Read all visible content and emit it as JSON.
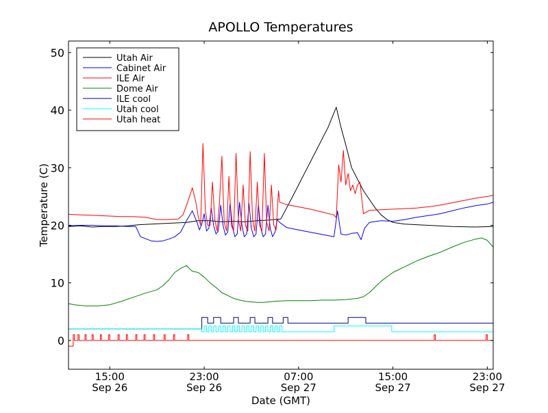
{
  "chart_data": {
    "type": "line",
    "title": "APOLLO Temperatures",
    "xlabel": "Date (GMT)",
    "ylabel": "Temperature (C)",
    "xlim": [
      11.5,
      47.5
    ],
    "ylim": [
      -5,
      52
    ],
    "x_unit": "hours since Sep 26 00:00 GMT",
    "grid": false,
    "legend_position": "top-left",
    "yticks": [
      {
        "value": 0,
        "label": "0"
      },
      {
        "value": 10,
        "label": "10"
      },
      {
        "value": 20,
        "label": "20"
      },
      {
        "value": 30,
        "label": "30"
      },
      {
        "value": 40,
        "label": "40"
      },
      {
        "value": 50,
        "label": "50"
      }
    ],
    "xticks": [
      {
        "value": 15,
        "time": "15:00",
        "date": "Sep 26"
      },
      {
        "value": 23,
        "time": "23:00",
        "date": "Sep 26"
      },
      {
        "value": 31,
        "time": "07:00",
        "date": "Sep 27"
      },
      {
        "value": 39,
        "time": "15:00",
        "date": "Sep 27"
      },
      {
        "value": 47,
        "time": "23:00",
        "date": "Sep 27"
      }
    ],
    "series": [
      {
        "name": "Utah Air",
        "color": "#000000",
        "x": [
          11.5,
          12.5,
          13.5,
          14.5,
          15.5,
          16.5,
          17.5,
          18.5,
          19.5,
          20.5,
          21.5,
          22.5,
          23.5,
          24.5,
          25.5,
          26.5,
          27.5,
          28.5,
          29.5,
          30.5,
          31.5,
          32.5,
          33.5,
          34.2,
          34.6,
          35.0,
          35.5,
          36.0,
          36.5,
          37.0,
          37.5,
          38.0,
          38.5,
          39.0,
          40.0,
          42.0,
          44.0,
          46.0,
          47.5
        ],
        "y": [
          19.8,
          19.9,
          19.7,
          19.8,
          19.8,
          19.9,
          20.1,
          20.2,
          20.3,
          20.4,
          20.5,
          20.8,
          20.8,
          20.6,
          20.7,
          20.6,
          20.8,
          20.9,
          21.1,
          25.0,
          29.0,
          33.0,
          37.0,
          40.5,
          37.0,
          34.0,
          30.0,
          28.0,
          26.0,
          24.5,
          23.0,
          21.8,
          21.0,
          20.5,
          20.2,
          20.0,
          19.8,
          19.7,
          19.8
        ]
      },
      {
        "name": "Cabinet Air",
        "color": "#0000ff",
        "x": [
          11.5,
          12.5,
          13.5,
          14.5,
          15.5,
          16.5,
          17.2,
          17.6,
          18.0,
          18.5,
          19.0,
          19.5,
          20.0,
          20.5,
          21.0,
          21.5,
          22.0,
          22.4,
          22.6,
          22.8,
          23.0,
          23.2,
          23.4,
          23.6,
          23.8,
          24.0,
          24.2,
          24.4,
          24.6,
          24.8,
          25.0,
          25.2,
          25.4,
          25.6,
          25.8,
          26.0,
          26.2,
          26.4,
          26.6,
          26.8,
          27.0,
          27.2,
          27.4,
          27.6,
          27.8,
          28.0,
          28.2,
          28.4,
          28.6,
          28.8,
          29.0,
          29.2,
          29.4,
          30.0,
          31.0,
          32.0,
          33.0,
          34.0,
          34.3,
          34.6,
          35.0,
          35.5,
          36.0,
          36.3,
          36.6,
          37.0,
          38.0,
          39.0,
          40.0,
          41.0,
          42.0,
          43.0,
          44.0,
          45.0,
          46.0,
          47.0,
          47.5
        ],
        "y": [
          19.9,
          20.0,
          20.0,
          19.9,
          19.9,
          19.8,
          19.8,
          18.0,
          17.7,
          17.3,
          17.2,
          17.3,
          17.6,
          18.0,
          18.8,
          20.8,
          22.5,
          20.5,
          19.2,
          20.2,
          22.0,
          19.0,
          19.5,
          23.0,
          20.0,
          18.5,
          19.0,
          23.5,
          20.0,
          18.3,
          18.8,
          23.8,
          19.8,
          18.0,
          18.5,
          24.0,
          20.0,
          18.0,
          18.5,
          23.8,
          19.5,
          18.0,
          18.5,
          23.6,
          19.5,
          18.0,
          18.5,
          23.5,
          19.5,
          18.0,
          18.8,
          21.0,
          20.5,
          19.6,
          19.2,
          18.8,
          18.4,
          18.0,
          22.5,
          18.5,
          18.3,
          18.6,
          18.7,
          17.5,
          19.5,
          20.5,
          20.8,
          20.7,
          21.0,
          21.4,
          21.7,
          22.0,
          22.5,
          23.0,
          23.4,
          23.7,
          24.0
        ]
      },
      {
        "name": "ILE Air",
        "color": "#ff0000",
        "x": [
          11.5,
          12.5,
          14.0,
          15.0,
          16.0,
          17.0,
          18.0,
          19.0,
          20.0,
          20.8,
          21.2,
          21.6,
          22.0,
          22.3,
          22.5,
          22.7,
          22.9,
          23.1,
          23.3,
          23.5,
          23.7,
          23.9,
          24.1,
          24.3,
          24.5,
          24.7,
          24.9,
          25.1,
          25.3,
          25.5,
          25.7,
          25.9,
          26.1,
          26.3,
          26.5,
          26.7,
          26.9,
          27.1,
          27.3,
          27.5,
          27.7,
          27.9,
          28.1,
          28.3,
          28.5,
          28.7,
          28.9,
          29.1,
          29.3,
          29.4,
          30.0,
          31.0,
          32.0,
          33.0,
          34.0,
          34.2,
          34.4,
          34.6,
          34.8,
          35.0,
          35.2,
          35.4,
          35.6,
          35.8,
          36.0,
          36.2,
          36.5,
          37.0,
          38.0,
          39.0,
          40.0,
          41.0,
          42.0,
          43.0,
          44.0,
          45.0,
          46.0,
          47.0,
          47.5
        ],
        "y": [
          21.9,
          21.8,
          21.7,
          21.6,
          21.5,
          21.5,
          21.4,
          21.0,
          21.0,
          21.1,
          21.8,
          24.0,
          26.5,
          24.0,
          21.5,
          20.0,
          34.2,
          22.5,
          20.0,
          20.0,
          27.5,
          21.0,
          19.0,
          24.0,
          32.0,
          20.5,
          19.0,
          28.5,
          20.0,
          19.0,
          32.5,
          21.0,
          19.0,
          27.0,
          20.0,
          19.0,
          32.8,
          21.0,
          19.0,
          27.5,
          20.0,
          19.0,
          32.5,
          20.5,
          19.0,
          27.0,
          20.0,
          19.2,
          26.0,
          24.0,
          23.6,
          23.2,
          22.8,
          22.3,
          21.8,
          21.3,
          30.5,
          27.5,
          33.0,
          27.0,
          29.0,
          26.0,
          27.0,
          25.5,
          27.0,
          27.5,
          22.0,
          22.6,
          22.7,
          22.8,
          22.9,
          23.0,
          23.2,
          23.5,
          23.9,
          24.3,
          24.7,
          25.0,
          25.2
        ]
      },
      {
        "name": "Dome Air",
        "color": "#008000",
        "x": [
          11.5,
          12.0,
          13.0,
          14.0,
          15.0,
          16.0,
          17.0,
          18.0,
          19.0,
          19.5,
          20.0,
          20.5,
          21.0,
          21.5,
          22.0,
          22.5,
          23.0,
          23.5,
          24.0,
          24.5,
          25.0,
          25.5,
          26.0,
          26.5,
          27.0,
          27.5,
          28.0,
          29.0,
          30.0,
          31.0,
          32.0,
          33.0,
          34.0,
          35.0,
          36.0,
          36.5,
          37.0,
          37.5,
          38.0,
          39.0,
          40.0,
          41.0,
          42.0,
          43.0,
          44.0,
          45.0,
          46.0,
          46.5,
          47.0,
          47.5
        ],
        "y": [
          6.4,
          6.2,
          6.0,
          6.0,
          6.2,
          6.8,
          7.5,
          8.2,
          8.8,
          9.5,
          10.5,
          11.8,
          12.5,
          13.0,
          12.0,
          11.8,
          11.0,
          10.0,
          9.2,
          8.3,
          7.8,
          7.3,
          7.0,
          6.8,
          6.7,
          6.6,
          6.6,
          6.8,
          6.9,
          6.9,
          6.9,
          7.0,
          7.0,
          7.1,
          7.3,
          7.6,
          8.3,
          9.3,
          10.3,
          11.8,
          12.8,
          13.8,
          14.6,
          15.3,
          16.2,
          17.0,
          17.6,
          17.8,
          17.4,
          16.2
        ]
      },
      {
        "name": "ILE cool",
        "color": "#000080",
        "x": [
          11.5,
          22.8,
          22.8,
          23.3,
          23.3,
          23.8,
          23.8,
          24.4,
          24.4,
          25.5,
          25.5,
          25.9,
          25.9,
          26.9,
          26.9,
          27.3,
          27.3,
          28.4,
          28.4,
          28.8,
          28.8,
          29.7,
          29.7,
          30.1,
          30.1,
          35.2,
          35.2,
          36.7,
          36.7,
          47.5
        ],
        "y": [
          2,
          2,
          4,
          4,
          3,
          3,
          4,
          4,
          3,
          3,
          4,
          4,
          3,
          3,
          4,
          4,
          3,
          3,
          4,
          4,
          3,
          3,
          4,
          4,
          3,
          3,
          4,
          4,
          3,
          3
        ]
      },
      {
        "name": "Utah cool",
        "color": "#00ffff",
        "x": [
          11.5,
          22.8,
          22.8,
          23.0,
          23.0,
          23.2,
          23.2,
          23.4,
          23.4,
          23.6,
          23.6,
          23.8,
          23.8,
          24.0,
          24.0,
          24.2,
          24.2,
          24.4,
          24.4,
          24.6,
          24.6,
          24.8,
          24.8,
          25.0,
          25.0,
          25.2,
          25.2,
          25.4,
          25.4,
          25.6,
          25.6,
          25.8,
          25.8,
          26.0,
          26.0,
          26.2,
          26.2,
          26.4,
          26.4,
          26.6,
          26.6,
          26.8,
          26.8,
          27.0,
          27.0,
          27.2,
          27.2,
          27.4,
          27.4,
          27.6,
          27.6,
          27.8,
          27.8,
          28.0,
          28.0,
          28.2,
          28.2,
          28.4,
          28.4,
          28.6,
          28.6,
          28.8,
          28.8,
          29.0,
          29.0,
          29.2,
          29.2,
          29.4,
          29.4,
          29.6,
          29.6,
          34.0,
          34.0,
          36.5,
          36.5,
          38.9,
          38.9,
          47.5
        ],
        "y": [
          2,
          2,
          1.5,
          1.5,
          2.5,
          2.5,
          1.5,
          1.5,
          2.5,
          2.5,
          1.5,
          1.5,
          2.5,
          2.5,
          1.5,
          1.5,
          2.5,
          2.5,
          1.5,
          1.5,
          2.5,
          2.5,
          1.5,
          1.5,
          2.5,
          2.5,
          1.5,
          1.5,
          2.5,
          2.5,
          1.5,
          1.5,
          2.5,
          2.5,
          1.5,
          1.5,
          2.5,
          2.5,
          1.5,
          1.5,
          2.5,
          2.5,
          1.5,
          1.5,
          2.5,
          2.5,
          1.5,
          1.5,
          2.5,
          2.5,
          1.5,
          1.5,
          2.5,
          2.5,
          1.5,
          1.5,
          2.5,
          2.5,
          1.5,
          1.5,
          2.5,
          2.5,
          1.5,
          1.5,
          2.5,
          2.5,
          1.5,
          1.5,
          2.5,
          2.5,
          1.5,
          1.5,
          2.5,
          2.5,
          2.5,
          2.5,
          1.5,
          1.5
        ]
      },
      {
        "name": "Utah heat",
        "color": "#ff0000",
        "x": [
          11.5,
          11.9,
          11.9,
          12.0,
          12.0,
          12.3,
          12.3,
          12.4,
          12.4,
          12.9,
          12.9,
          13.0,
          13.0,
          13.5,
          13.5,
          13.6,
          13.6,
          14.2,
          14.2,
          14.3,
          14.3,
          14.9,
          14.9,
          15.0,
          15.0,
          15.7,
          15.7,
          15.8,
          15.8,
          16.4,
          16.4,
          16.5,
          16.5,
          17.2,
          17.2,
          17.3,
          17.3,
          17.9,
          17.9,
          18.0,
          18.0,
          18.7,
          18.7,
          18.8,
          18.8,
          19.6,
          19.6,
          19.7,
          19.7,
          20.4,
          20.4,
          20.5,
          20.5,
          21.6,
          21.6,
          21.7,
          21.7,
          42.5,
          42.5,
          42.6,
          42.6,
          46.9,
          46.9,
          47.0,
          47.0,
          47.5
        ],
        "y": [
          -1,
          -1,
          1,
          1,
          0,
          0,
          1,
          1,
          0,
          0,
          1,
          1,
          0,
          0,
          1,
          1,
          0,
          0,
          1,
          1,
          0,
          0,
          1,
          1,
          0,
          0,
          1,
          1,
          0,
          0,
          1,
          1,
          0,
          0,
          1,
          1,
          0,
          0,
          1,
          1,
          0,
          0,
          1,
          1,
          0,
          0,
          1,
          1,
          0,
          0,
          1,
          1,
          0,
          0,
          1,
          1,
          0,
          0,
          1,
          1,
          0,
          0,
          1,
          1,
          0,
          0
        ]
      }
    ]
  }
}
